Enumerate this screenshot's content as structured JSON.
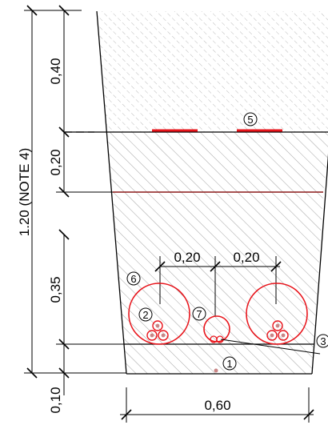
{
  "colors": {
    "outline": "#000000",
    "hatch": "#9a9a9a",
    "dashed_hatch": "#a8a8a8",
    "red": "#e8141b",
    "dark_red": "#8b1a1a",
    "pink_dot": "#c98585"
  },
  "dimensions": {
    "left_total": "1.20 (NOTE 4)",
    "top_layer": "0,40",
    "second_layer": "0,20",
    "third_layer": "0,35",
    "bottom_layer": "0,10",
    "bottom_width": "0,60",
    "spacing_left": "0,20",
    "spacing_right": "0,20"
  },
  "callouts": {
    "c1": "1",
    "c2": "2",
    "c3": "3",
    "c5": "5",
    "c6": "6",
    "c7": "7"
  }
}
